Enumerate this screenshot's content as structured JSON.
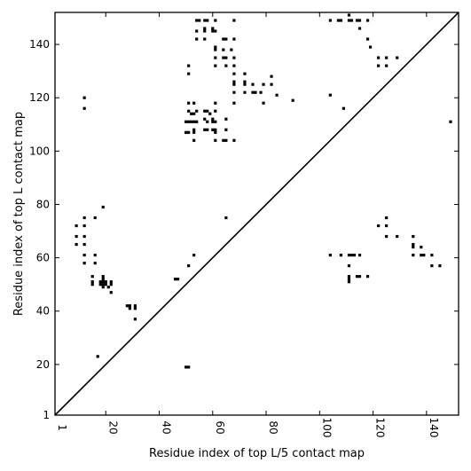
{
  "chart_data": {
    "type": "scatter",
    "title": "",
    "xlabel": "Residue index of top L/5 contact map",
    "ylabel": "Residue index of top L contact map",
    "xlim": [
      1,
      152
    ],
    "ylim": [
      1,
      152
    ],
    "xticks": [
      1,
      20,
      40,
      60,
      80,
      100,
      120,
      140
    ],
    "yticks": [
      1,
      20,
      40,
      60,
      80,
      100,
      120,
      140
    ],
    "grid": false,
    "legend": "none",
    "marker_color": "#000000",
    "line_color": "#000000",
    "diagonal": [
      [
        1,
        1
      ],
      [
        152,
        152
      ]
    ],
    "series": [
      {
        "name": "",
        "points": [
          [
            12,
            120
          ],
          [
            12,
            116
          ],
          [
            51,
            132
          ],
          [
            51,
            129
          ],
          [
            51,
            118
          ],
          [
            53,
            118
          ],
          [
            51,
            115
          ],
          [
            52,
            114
          ],
          [
            53,
            114
          ],
          [
            54,
            115
          ],
          [
            51,
            111
          ],
          [
            50,
            111
          ],
          [
            52,
            111
          ],
          [
            53,
            111
          ],
          [
            54,
            111
          ],
          [
            50,
            107
          ],
          [
            51,
            107
          ],
          [
            53,
            107
          ],
          [
            53,
            108
          ],
          [
            53,
            104
          ],
          [
            54,
            149
          ],
          [
            55,
            149
          ],
          [
            54,
            145
          ],
          [
            54,
            142
          ],
          [
            57,
            149
          ],
          [
            58,
            149
          ],
          [
            57,
            146
          ],
          [
            57,
            145
          ],
          [
            57,
            142
          ],
          [
            60,
            145
          ],
          [
            61,
            145
          ],
          [
            61,
            149
          ],
          [
            60,
            146
          ],
          [
            61,
            139
          ],
          [
            61,
            138
          ],
          [
            61,
            135
          ],
          [
            61,
            132
          ],
          [
            64,
            142
          ],
          [
            65,
            142
          ],
          [
            64,
            138
          ],
          [
            64,
            135
          ],
          [
            65,
            135
          ],
          [
            65,
            132
          ],
          [
            67,
            138
          ],
          [
            68,
            142
          ],
          [
            68,
            149
          ],
          [
            68,
            135
          ],
          [
            68,
            132
          ],
          [
            68,
            129
          ],
          [
            68,
            126
          ],
          [
            68,
            125
          ],
          [
            68,
            122
          ],
          [
            68,
            118
          ],
          [
            72,
            129
          ],
          [
            72,
            126
          ],
          [
            72,
            125
          ],
          [
            72,
            122
          ],
          [
            75,
            125
          ],
          [
            75,
            122
          ],
          [
            76,
            122
          ],
          [
            78,
            122
          ],
          [
            79,
            125
          ],
          [
            79,
            118
          ],
          [
            82,
            128
          ],
          [
            82,
            125
          ],
          [
            84,
            121
          ],
          [
            90,
            119
          ],
          [
            57,
            115
          ],
          [
            58,
            115
          ],
          [
            57,
            112
          ],
          [
            58,
            111
          ],
          [
            60,
            111
          ],
          [
            61,
            111
          ],
          [
            60,
            112
          ],
          [
            61,
            115
          ],
          [
            61,
            118
          ],
          [
            59,
            114
          ],
          [
            57,
            108
          ],
          [
            58,
            108
          ],
          [
            60,
            108
          ],
          [
            61,
            108
          ],
          [
            61,
            107
          ],
          [
            61,
            104
          ],
          [
            64,
            104
          ],
          [
            65,
            104
          ],
          [
            68,
            104
          ],
          [
            65,
            108
          ],
          [
            65,
            112
          ],
          [
            104,
            149
          ],
          [
            107,
            149
          ],
          [
            108,
            149
          ],
          [
            111,
            149
          ],
          [
            112,
            149
          ],
          [
            111,
            151
          ],
          [
            114,
            149
          ],
          [
            115,
            149
          ],
          [
            115,
            146
          ],
          [
            118,
            149
          ],
          [
            118,
            142
          ],
          [
            119,
            139
          ],
          [
            122,
            135
          ],
          [
            122,
            132
          ],
          [
            125,
            135
          ],
          [
            125,
            132
          ],
          [
            129,
            135
          ],
          [
            104,
            121
          ],
          [
            109,
            116
          ],
          [
            149,
            111
          ],
          [
            9,
            72
          ],
          [
            12,
            75
          ],
          [
            12,
            72
          ],
          [
            9,
            68
          ],
          [
            12,
            68
          ],
          [
            9,
            65
          ],
          [
            12,
            65
          ],
          [
            12,
            61
          ],
          [
            12,
            58
          ],
          [
            16,
            75
          ],
          [
            16,
            61
          ],
          [
            16,
            58
          ],
          [
            19,
            79
          ],
          [
            15,
            53
          ],
          [
            15,
            51
          ],
          [
            15,
            50
          ],
          [
            19,
            53
          ],
          [
            19,
            52
          ],
          [
            18,
            51
          ],
          [
            19,
            51
          ],
          [
            20,
            51
          ],
          [
            18,
            50
          ],
          [
            19,
            50
          ],
          [
            20,
            50
          ],
          [
            19,
            49
          ],
          [
            21,
            49
          ],
          [
            22,
            51
          ],
          [
            22,
            50
          ],
          [
            22,
            47
          ],
          [
            28,
            42
          ],
          [
            29,
            42
          ],
          [
            29,
            41
          ],
          [
            31,
            42
          ],
          [
            31,
            41
          ],
          [
            31,
            37
          ],
          [
            17,
            23
          ],
          [
            46,
            52
          ],
          [
            47,
            52
          ],
          [
            51,
            57
          ],
          [
            53,
            61
          ],
          [
            65,
            75
          ],
          [
            50,
            19
          ],
          [
            51,
            19
          ],
          [
            104,
            61
          ],
          [
            108,
            61
          ],
          [
            111,
            61
          ],
          [
            112,
            61
          ],
          [
            113,
            61
          ],
          [
            111,
            57
          ],
          [
            111,
            53
          ],
          [
            111,
            52
          ],
          [
            111,
            51
          ],
          [
            114,
            53
          ],
          [
            115,
            53
          ],
          [
            115,
            61
          ],
          [
            118,
            53
          ],
          [
            122,
            72
          ],
          [
            125,
            75
          ],
          [
            125,
            72
          ],
          [
            125,
            68
          ],
          [
            129,
            68
          ],
          [
            135,
            68
          ],
          [
            135,
            65
          ],
          [
            135,
            64
          ],
          [
            135,
            61
          ],
          [
            138,
            64
          ],
          [
            138,
            61
          ],
          [
            139,
            61
          ],
          [
            142,
            61
          ],
          [
            142,
            57
          ],
          [
            145,
            57
          ]
        ]
      }
    ]
  }
}
